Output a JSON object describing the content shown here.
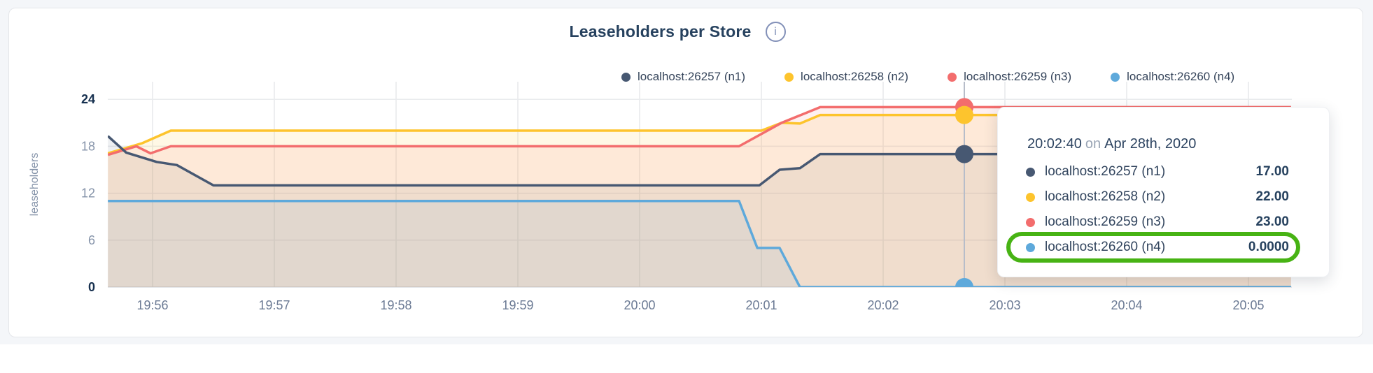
{
  "header": {
    "info_glyph": "i"
  },
  "chart_data": {
    "type": "area",
    "title": "Leaseholders per Store",
    "ylabel": "leaseholders",
    "ylim": [
      0,
      24
    ],
    "y_ticks": [
      0,
      6,
      12,
      18,
      24
    ],
    "x_ticks": [
      "19:56",
      "19:57",
      "19:58",
      "19:59",
      "20:00",
      "20:01",
      "20:02",
      "20:03",
      "20:04",
      "20:05"
    ],
    "x_range": [
      "19:55:38",
      "20:05:21"
    ],
    "grid": true,
    "legend_position": "top-right",
    "series": [
      {
        "name": "localhost:26257 (n1)",
        "color": "#475872",
        "points": [
          [
            "19:55:38",
            19.3
          ],
          [
            "19:55:47",
            17.2
          ],
          [
            "19:56:02",
            16.0
          ],
          [
            "19:56:12",
            15.6
          ],
          [
            "19:56:30",
            13.0
          ],
          [
            "20:00:59",
            13.0
          ],
          [
            "20:01:09",
            15.0
          ],
          [
            "20:01:19",
            15.2
          ],
          [
            "20:01:29",
            17.0
          ],
          [
            "20:05:21",
            17.0
          ]
        ]
      },
      {
        "name": "localhost:26258 (n2)",
        "color": "#fdc42d",
        "points": [
          [
            "19:55:38",
            17.1
          ],
          [
            "19:55:55",
            18.4
          ],
          [
            "19:56:09",
            20.0
          ],
          [
            "20:01:00",
            20.0
          ],
          [
            "20:01:10",
            21.0
          ],
          [
            "20:01:19",
            20.9
          ],
          [
            "20:01:29",
            22.0
          ],
          [
            "20:05:21",
            22.0
          ]
        ]
      },
      {
        "name": "localhost:26259 (n3)",
        "color": "#f36d6d",
        "points": [
          [
            "19:55:38",
            16.9
          ],
          [
            "19:55:52",
            18.0
          ],
          [
            "19:55:59",
            17.1
          ],
          [
            "19:56:09",
            18.0
          ],
          [
            "20:00:49",
            18.0
          ],
          [
            "20:01:10",
            21.0
          ],
          [
            "20:01:29",
            23.0
          ],
          [
            "20:05:21",
            23.0
          ]
        ]
      },
      {
        "name": "localhost:26260 (n4)",
        "color": "#5ea9db",
        "points": [
          [
            "19:55:38",
            11.0
          ],
          [
            "20:00:49",
            11.0
          ],
          [
            "20:00:58",
            5.0
          ],
          [
            "20:01:09",
            5.0
          ],
          [
            "20:01:19",
            0.0
          ],
          [
            "20:05:21",
            0.0
          ]
        ]
      }
    ],
    "hover": {
      "time": "20:02:40",
      "values": [
        17,
        22,
        23,
        0
      ]
    }
  },
  "tooltip": {
    "time": "20:02:40",
    "on_word": "on",
    "date": "Apr 28th, 2020",
    "rows": [
      {
        "label": "localhost:26257 (n1)",
        "value": "17.00"
      },
      {
        "label": "localhost:26258 (n2)",
        "value": "22.00"
      },
      {
        "label": "localhost:26259 (n3)",
        "value": "23.00"
      },
      {
        "label": "localhost:26260 (n4)",
        "value": "0.0000"
      }
    ],
    "highlighted_row": 3,
    "highlight_color": "#47b314"
  }
}
